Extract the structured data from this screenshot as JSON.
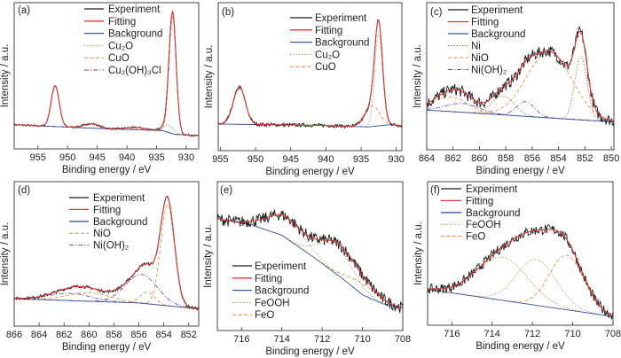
{
  "chart_data": [
    {
      "type": "line",
      "panel_label": "(a)",
      "xlabel": "Binding energy / eV",
      "ylabel": "Intensity / a.u.",
      "xlim": [
        959,
        927.9
      ],
      "ylim": [
        0,
        1
      ],
      "xticks": [
        955,
        950,
        945,
        940,
        935,
        930
      ],
      "legend": [
        {
          "name": "Experiment",
          "color": "#1a1a1a",
          "style": "solid"
        },
        {
          "name": "Fitting",
          "color": "#d83a3a",
          "style": "solid"
        },
        {
          "name": "Background",
          "color": "#3a58a8",
          "style": "solid"
        },
        {
          "name": "Cu₂O",
          "color": "#8a8a40",
          "style": "dot"
        },
        {
          "name": "CuO",
          "color": "#e8883a",
          "style": "dash"
        },
        {
          "name": "Cu₂(OH)₃Cl",
          "color": "#8b3a3a",
          "style": "dashdot"
        }
      ],
      "background": [
        [
          959,
          0.165
        ],
        [
          945,
          0.14
        ],
        [
          934,
          0.125
        ],
        [
          932,
          0.1
        ],
        [
          928,
          0.09
        ]
      ],
      "components": [
        {
          "series": "CuO",
          "center": 932.3,
          "amplitude": 0.8,
          "fwhm": 1.4
        },
        {
          "series": "CuO",
          "center": 952.1,
          "amplitude": 0.28,
          "fwhm": 1.6
        },
        {
          "series": "Cu₂O",
          "center": 933.0,
          "amplitude": 0.05,
          "fwhm": 2.0
        },
        {
          "series": "Cu₂(OH)₃Cl",
          "center": 946.0,
          "amplitude": 0.03,
          "fwhm": 3.0
        },
        {
          "series": "Cu₂(OH)₃Cl",
          "center": 938.5,
          "amplitude": 0.015,
          "fwhm": 4.0
        }
      ]
    },
    {
      "type": "line",
      "panel_label": "(b)",
      "xlabel": "Binding energy / eV",
      "ylabel": "Intensity / a.u.",
      "xlim": [
        955.3,
        929.2
      ],
      "ylim": [
        0,
        1
      ],
      "xticks": [
        955,
        950,
        945,
        940,
        935,
        930
      ],
      "legend": [
        {
          "name": "Experiment",
          "color": "#1a1a1a",
          "style": "solid"
        },
        {
          "name": "Fitting",
          "color": "#d83a3a",
          "style": "solid"
        },
        {
          "name": "Background",
          "color": "#3a58a8",
          "style": "solid"
        },
        {
          "name": "Cu₂O",
          "color": "#c0804a",
          "style": "dot"
        },
        {
          "name": "CuO",
          "color": "#e8883a",
          "style": "dash"
        }
      ],
      "background": [
        [
          955.3,
          0.18
        ],
        [
          940,
          0.17
        ],
        [
          934,
          0.16
        ],
        [
          931,
          0.175
        ],
        [
          929.2,
          0.17
        ]
      ],
      "components": [
        {
          "series": "Cu₂O",
          "center": 932.5,
          "amplitude": 0.62,
          "fwhm": 1.3
        },
        {
          "series": "CuO",
          "center": 933.4,
          "amplitude": 0.14,
          "fwhm": 2.4
        },
        {
          "series": "Cu₂O",
          "center": 952.3,
          "amplitude": 0.25,
          "fwhm": 2.0
        }
      ]
    },
    {
      "type": "line",
      "panel_label": "(c)",
      "xlabel": "Binding energy / eV",
      "ylabel": "Intensity / a.u.",
      "xlim": [
        864,
        849.8
      ],
      "ylim": [
        0,
        1
      ],
      "xticks": [
        864,
        862,
        860,
        858,
        856,
        854,
        852,
        850
      ],
      "legend": [
        {
          "name": "Experiment",
          "color": "#1a1a1a",
          "style": "solid"
        },
        {
          "name": "Fitting",
          "color": "#d83a3a",
          "style": "solid"
        },
        {
          "name": "Background",
          "color": "#3a58a8",
          "style": "solid"
        },
        {
          "name": "Ni",
          "color": "#6a6a30",
          "style": "dot"
        },
        {
          "name": "NiO",
          "color": "#e8883a",
          "style": "dash"
        },
        {
          "name": "Ni(OH)₂",
          "color": "#6a48a0",
          "style": "dashdot"
        }
      ],
      "background": [
        [
          864,
          0.27
        ],
        [
          850,
          0.19
        ]
      ],
      "components": [
        {
          "series": "Ni",
          "center": 852.3,
          "amplitude": 0.43,
          "fwhm": 1.1
        },
        {
          "series": "NiO",
          "center": 854.7,
          "amplitude": 0.45,
          "fwhm": 4.0
        },
        {
          "series": "NiO",
          "center": 862.2,
          "amplitude": 0.1,
          "fwhm": 3.0
        },
        {
          "series": "Ni",
          "center": 858.2,
          "amplitude": 0.13,
          "fwhm": 2.0
        },
        {
          "series": "Ni(OH)₂",
          "center": 856.5,
          "amplitude": 0.1,
          "fwhm": 1.6
        },
        {
          "series": "Ni(OH)₂",
          "center": 861.3,
          "amplitude": 0.06,
          "fwhm": 3.0
        }
      ]
    },
    {
      "type": "line",
      "panel_label": "(d)",
      "xlabel": "Binding energy / eV",
      "ylabel": "Intensity / a.u.",
      "xlim": [
        866,
        851.2
      ],
      "ylim": [
        0,
        1
      ],
      "xticks": [
        866,
        864,
        862,
        860,
        858,
        856,
        854,
        852
      ],
      "legend": [
        {
          "name": "Experiment",
          "color": "#1a1a1a",
          "style": "solid"
        },
        {
          "name": "Fitting",
          "color": "#d83a3a",
          "style": "solid"
        },
        {
          "name": "Background",
          "color": "#3a58a8",
          "style": "solid"
        },
        {
          "name": "NiO",
          "color": "#e8883a",
          "style": "dash"
        },
        {
          "name": "Ni(OH)₂",
          "color": "#6a48a0",
          "style": "dashdot"
        }
      ],
      "background": [
        [
          866,
          0.19
        ],
        [
          856,
          0.16
        ],
        [
          851.2,
          0.12
        ]
      ],
      "components": [
        {
          "series": "NiO",
          "center": 853.7,
          "amplitude": 0.7,
          "fwhm": 1.3
        },
        {
          "series": "NiO",
          "center": 855.3,
          "amplitude": 0.08,
          "fwhm": 1.4
        },
        {
          "series": "NiO",
          "center": 860.0,
          "amplitude": 0.06,
          "fwhm": 4.0
        },
        {
          "series": "Ni(OH)₂",
          "center": 855.8,
          "amplitude": 0.2,
          "fwhm": 3.0
        },
        {
          "series": "Ni(OH)₂",
          "center": 861.5,
          "amplitude": 0.05,
          "fwhm": 4.0
        }
      ]
    },
    {
      "type": "line",
      "panel_label": "(e)",
      "xlabel": "Binding energy / eV",
      "ylabel": "Intensity / a.u.",
      "xlim": [
        717.2,
        708
      ],
      "ylim": [
        0,
        1
      ],
      "xticks": [
        716,
        714,
        712,
        710,
        708
      ],
      "legend": [
        {
          "name": "Experiment",
          "color": "#1a1a1a",
          "style": "solid"
        },
        {
          "name": "Fitting",
          "color": "#d83a3a",
          "style": "solid"
        },
        {
          "name": "Background",
          "color": "#3a58a8",
          "style": "solid"
        },
        {
          "name": "FeOOH",
          "color": "#8a8a40",
          "style": "dot"
        },
        {
          "name": "FeO",
          "color": "#e8883a",
          "style": "dash"
        }
      ],
      "background": [
        [
          717.2,
          0.75
        ],
        [
          715.5,
          0.71
        ],
        [
          714,
          0.64
        ],
        [
          712.5,
          0.5
        ],
        [
          711,
          0.35
        ],
        [
          710,
          0.24
        ],
        [
          709,
          0.18
        ],
        [
          708,
          0.15
        ]
      ],
      "components": [
        {
          "series": "FeOOH",
          "center": 713.8,
          "amplitude": 0.14,
          "fwhm": 2.2
        },
        {
          "series": "FeOOH",
          "center": 711.3,
          "amplitude": 0.19,
          "fwhm": 2.0
        },
        {
          "series": "FeO",
          "center": 710.0,
          "amplitude": 0.07,
          "fwhm": 1.8
        }
      ]
    },
    {
      "type": "line",
      "panel_label": "(f)",
      "xlabel": "Binding energy / eV",
      "ylabel": "Intensity / a.u.",
      "xlim": [
        717.2,
        708
      ],
      "ylim": [
        0,
        1
      ],
      "xticks": [
        716,
        714,
        712,
        710,
        708
      ],
      "legend": [
        {
          "name": "Experiment",
          "color": "#1a1a1a",
          "style": "solid"
        },
        {
          "name": "Fitting",
          "color": "#d83a3a",
          "style": "solid"
        },
        {
          "name": "Background",
          "color": "#3a58a8",
          "style": "solid"
        },
        {
          "name": "FeOOH",
          "color": "#8a8a40",
          "style": "dot"
        },
        {
          "name": "FeO",
          "color": "#e8883a",
          "style": "dash"
        }
      ],
      "background": [
        [
          717.2,
          0.25
        ],
        [
          708,
          0.06
        ]
      ],
      "components": [
        {
          "series": "FeOOH",
          "center": 713.5,
          "amplitude": 0.3,
          "fwhm": 3.0
        },
        {
          "series": "FeOOH",
          "center": 711.8,
          "amplitude": 0.32,
          "fwhm": 2.3
        },
        {
          "series": "FeO",
          "center": 710.3,
          "amplitude": 0.38,
          "fwhm": 2.0
        }
      ]
    }
  ]
}
